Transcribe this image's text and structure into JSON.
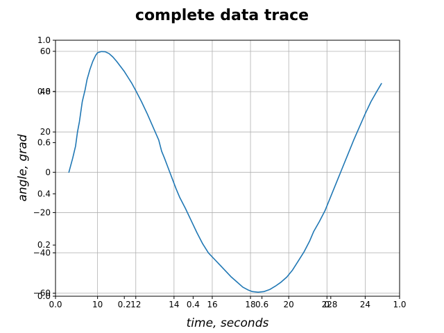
{
  "chart_data": {
    "type": "line",
    "title": "complete data trace",
    "xlabel": "time, seconds",
    "ylabel": "angle, grad",
    "xlim": [
      7.8,
      25.8
    ],
    "ylim": [
      -61.5,
      65.5
    ],
    "grid": true,
    "x_ticks": [
      10,
      12,
      14,
      16,
      18,
      20,
      22,
      24
    ],
    "y_ticks": [
      -60,
      -40,
      -20,
      0,
      20,
      40,
      60
    ],
    "overlay_x_ticks": [
      "0.0",
      "0.2",
      "0.4",
      "0.6",
      "0.8",
      "1.0"
    ],
    "overlay_y_ticks": [
      "0.0",
      "0.2",
      "0.4",
      "0.6",
      "0.8",
      "1.0"
    ],
    "series": [
      {
        "color": "#1f77b4",
        "points": [
          [
            8.5,
            0
          ],
          [
            8.7,
            7
          ],
          [
            8.85,
            13
          ],
          [
            8.95,
            20
          ],
          [
            9.05,
            25
          ],
          [
            9.2,
            35
          ],
          [
            9.35,
            41
          ],
          [
            9.45,
            46
          ],
          [
            9.6,
            51
          ],
          [
            9.75,
            55
          ],
          [
            9.9,
            58
          ],
          [
            10.0,
            59.3
          ],
          [
            10.2,
            59.9
          ],
          [
            10.4,
            59.8
          ],
          [
            10.6,
            58.9
          ],
          [
            10.8,
            57.2
          ],
          [
            11.0,
            55
          ],
          [
            11.2,
            52.5
          ],
          [
            11.4,
            50
          ],
          [
            11.6,
            47
          ],
          [
            11.8,
            44
          ],
          [
            12.0,
            40.5
          ],
          [
            12.3,
            35
          ],
          [
            12.6,
            29
          ],
          [
            12.9,
            22.5
          ],
          [
            13.2,
            16
          ],
          [
            13.35,
            10.5
          ],
          [
            13.5,
            7
          ],
          [
            13.7,
            2
          ],
          [
            13.9,
            -3
          ],
          [
            14.1,
            -8
          ],
          [
            14.3,
            -12.5
          ],
          [
            14.6,
            -18
          ],
          [
            14.9,
            -24
          ],
          [
            15.2,
            -30
          ],
          [
            15.5,
            -35.5
          ],
          [
            15.8,
            -40
          ],
          [
            16.1,
            -43
          ],
          [
            16.4,
            -46
          ],
          [
            16.7,
            -49
          ],
          [
            17.0,
            -52
          ],
          [
            17.3,
            -54.5
          ],
          [
            17.6,
            -57
          ],
          [
            17.9,
            -58.5
          ],
          [
            18.1,
            -59.2
          ],
          [
            18.4,
            -59.5
          ],
          [
            18.7,
            -59.2
          ],
          [
            19.0,
            -58.2
          ],
          [
            19.3,
            -56.5
          ],
          [
            19.6,
            -54.5
          ],
          [
            19.9,
            -52
          ],
          [
            20.2,
            -48.5
          ],
          [
            20.5,
            -44
          ],
          [
            20.8,
            -39.5
          ],
          [
            21.1,
            -34
          ],
          [
            21.3,
            -29.5
          ],
          [
            21.6,
            -24.5
          ],
          [
            21.9,
            -19
          ],
          [
            22.2,
            -12
          ],
          [
            22.5,
            -5
          ],
          [
            22.8,
            2
          ],
          [
            23.1,
            9
          ],
          [
            23.4,
            16
          ],
          [
            23.7,
            22.5
          ],
          [
            24.0,
            29
          ],
          [
            24.3,
            35
          ],
          [
            24.6,
            40
          ],
          [
            24.85,
            44
          ]
        ]
      }
    ]
  }
}
